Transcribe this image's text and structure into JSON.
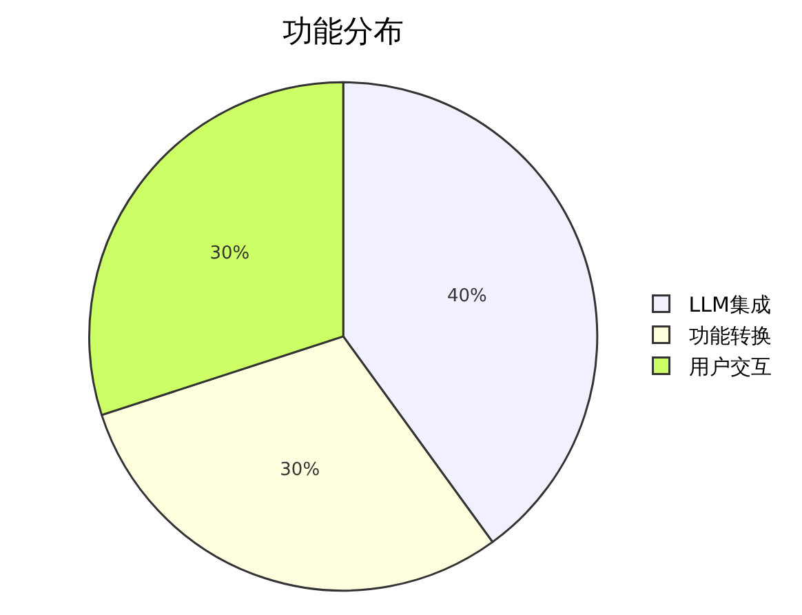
{
  "chart_data": {
    "type": "pie",
    "title": "功能分布",
    "categories": [
      "LLM集成",
      "功能转换",
      "用户交互"
    ],
    "values": [
      40,
      30,
      30
    ],
    "value_labels": [
      "40%",
      "30%",
      "30%"
    ],
    "colors": [
      "#f0f0ff",
      "#ffffe0",
      "#ccff66"
    ],
    "legend": "right"
  }
}
